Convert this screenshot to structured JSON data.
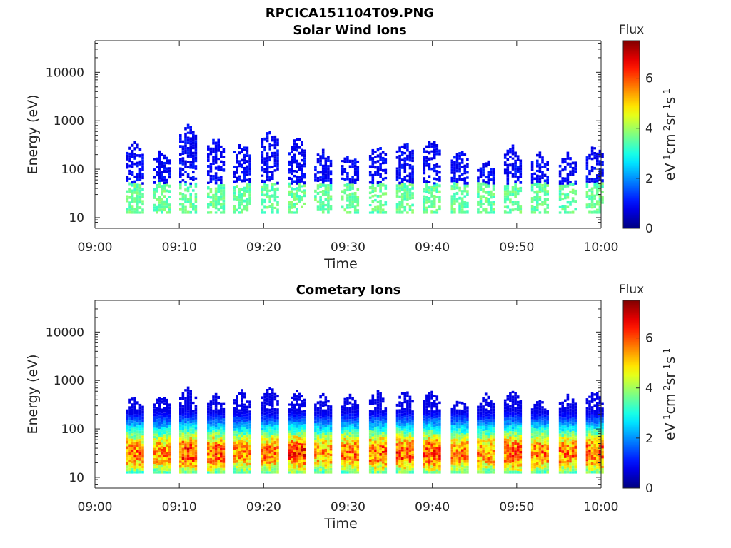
{
  "figure": {
    "title_line1": "RPCICA151104T09.PNG",
    "title_line2": "Solar Wind Ions"
  },
  "colorbar": {
    "label": "Flux",
    "unit_parts": [
      "eV",
      "-1",
      "cm",
      "-2",
      "sr",
      "-1",
      "s",
      "-1"
    ],
    "ticks": [
      "0",
      "2",
      "4",
      "6"
    ],
    "range": [
      0,
      7.5
    ],
    "colormap": "jet"
  },
  "chart_data": [
    {
      "type": "heatmap",
      "title": "Solar Wind Ions",
      "xlabel": "Time",
      "ylabel": "Energy (eV)",
      "x_ticks": [
        "09:00",
        "09:10",
        "09:20",
        "09:30",
        "09:40",
        "09:50",
        "10:00"
      ],
      "x_range_minutes": [
        0,
        60
      ],
      "y_ticks": [
        "10",
        "100",
        "1000",
        "10000"
      ],
      "y_scale": "log",
      "y_range_eV": [
        6,
        45000
      ],
      "bursts": [
        {
          "t": 4.6,
          "flux": 2.3,
          "emax": 350
        },
        {
          "t": 7.8,
          "flux": 2.5,
          "emax": 250
        },
        {
          "t": 10.9,
          "flux": 2.6,
          "emax": 800
        },
        {
          "t": 14.2,
          "flux": 2.6,
          "emax": 450
        },
        {
          "t": 17.3,
          "flux": 2.4,
          "emax": 350
        },
        {
          "t": 20.6,
          "flux": 2.5,
          "emax": 650
        },
        {
          "t": 23.8,
          "flux": 2.6,
          "emax": 450
        },
        {
          "t": 26.9,
          "flux": 2.3,
          "emax": 250
        },
        {
          "t": 30.1,
          "flux": 2.4,
          "emax": 220
        },
        {
          "t": 33.4,
          "flux": 2.5,
          "emax": 300
        },
        {
          "t": 36.6,
          "flux": 2.5,
          "emax": 350
        },
        {
          "t": 39.8,
          "flux": 2.5,
          "emax": 400
        },
        {
          "t": 43.1,
          "flux": 2.2,
          "emax": 250
        },
        {
          "t": 46.2,
          "flux": 2.1,
          "emax": 150
        },
        {
          "t": 49.4,
          "flux": 2.3,
          "emax": 300
        },
        {
          "t": 52.6,
          "flux": 2.2,
          "emax": 230
        },
        {
          "t": 55.9,
          "flux": 2.3,
          "emax": 200
        },
        {
          "t": 59.1,
          "flux": 2.6,
          "emax": 300
        }
      ]
    },
    {
      "type": "heatmap",
      "title": "Cometary Ions",
      "xlabel": "Time",
      "ylabel": "Energy (eV)",
      "x_ticks": [
        "09:00",
        "09:10",
        "09:20",
        "09:30",
        "09:40",
        "09:50",
        "10:00"
      ],
      "x_range_minutes": [
        0,
        60
      ],
      "y_ticks": [
        "10",
        "100",
        "1000",
        "10000"
      ],
      "y_scale": "log",
      "y_range_eV": [
        6,
        45000
      ],
      "bursts": [
        {
          "t": 4.6,
          "flux": 5.8,
          "emax": 500
        },
        {
          "t": 7.8,
          "flux": 5.6,
          "emax": 500
        },
        {
          "t": 10.9,
          "flux": 6.2,
          "emax": 700
        },
        {
          "t": 14.2,
          "flux": 6.0,
          "emax": 500
        },
        {
          "t": 17.3,
          "flux": 5.6,
          "emax": 600
        },
        {
          "t": 20.6,
          "flux": 5.8,
          "emax": 700
        },
        {
          "t": 23.8,
          "flux": 6.2,
          "emax": 600
        },
        {
          "t": 26.9,
          "flux": 5.5,
          "emax": 500
        },
        {
          "t": 30.1,
          "flux": 5.9,
          "emax": 500
        },
        {
          "t": 33.4,
          "flux": 6.0,
          "emax": 600
        },
        {
          "t": 36.6,
          "flux": 6.1,
          "emax": 600
        },
        {
          "t": 39.8,
          "flux": 6.2,
          "emax": 600
        },
        {
          "t": 43.1,
          "flux": 5.7,
          "emax": 400
        },
        {
          "t": 46.2,
          "flux": 5.6,
          "emax": 500
        },
        {
          "t": 49.4,
          "flux": 6.1,
          "emax": 600
        },
        {
          "t": 52.6,
          "flux": 5.8,
          "emax": 400
        },
        {
          "t": 55.9,
          "flux": 5.8,
          "emax": 500
        },
        {
          "t": 59.1,
          "flux": 6.0,
          "emax": 600
        }
      ]
    }
  ]
}
